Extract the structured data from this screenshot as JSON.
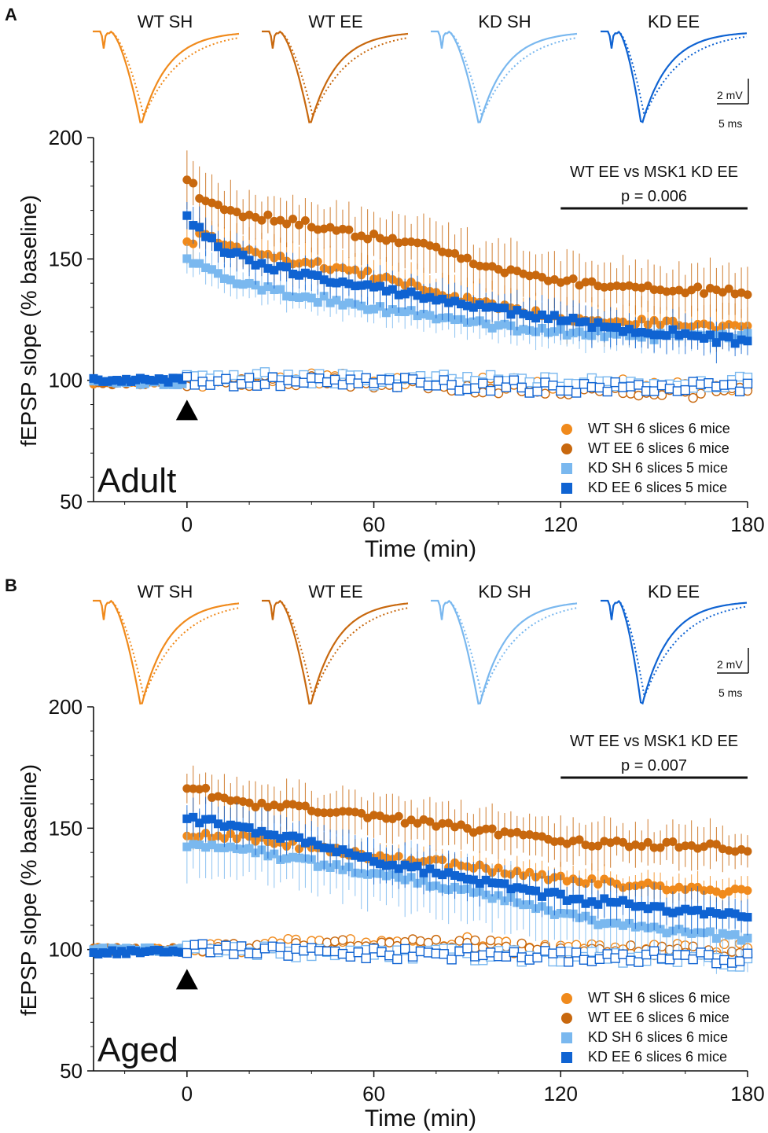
{
  "colors": {
    "wt_sh": "#f08a1c",
    "wt_ee": "#c8680e",
    "kd_sh": "#7ab8ef",
    "kd_ee": "#0f63d2",
    "axis": "#111111"
  },
  "scale_bar": {
    "voltage": "2 mV",
    "time": "5 ms"
  },
  "chart_data": [
    {
      "type": "scatter",
      "panel_label": "A",
      "stage_label": "Adult",
      "trace_labels": [
        "WT SH",
        "WT EE",
        "KD SH",
        "KD EE"
      ],
      "xlabel": "Time (min)",
      "ylabel": "fEPSP slope (% baseline)",
      "xlim": [
        -30,
        180
      ],
      "ylim": [
        50,
        200
      ],
      "xticks": [
        0,
        60,
        120,
        180
      ],
      "yticks": [
        50,
        100,
        150,
        200
      ],
      "stim_marker_time": 0,
      "comparison": {
        "title": "WT EE vs MSK1 KD EE",
        "p": "p = 0.006",
        "range": [
          120,
          180
        ]
      },
      "legend": {
        "position": "bottom-right",
        "entries": [
          "WT SH 6 slices 6 mice",
          "WT EE 6 slices 6 mice",
          "KD SH 6 slices 5 mice",
          "KD EE 6 slices 5 mice"
        ]
      },
      "series": [
        {
          "name": "WT SH 6 slices 6 mice",
          "key": "wt_sh",
          "marker": "circle",
          "baseline": 99,
          "points": [
            [
              0,
              156
            ],
            [
              5,
              160
            ],
            [
              10,
              157
            ],
            [
              20,
              153
            ],
            [
              30,
              150
            ],
            [
              40,
              148
            ],
            [
              50,
              146
            ],
            [
              60,
              143
            ],
            [
              70,
              140
            ],
            [
              80,
              136
            ],
            [
              90,
              133
            ],
            [
              100,
              130
            ],
            [
              110,
              128
            ],
            [
              120,
              126
            ],
            [
              130,
              125
            ],
            [
              140,
              124
            ],
            [
              150,
              124
            ],
            [
              160,
              123
            ],
            [
              170,
              122
            ],
            [
              180,
              122
            ]
          ],
          "control": [
            [
              0,
              99
            ],
            [
              30,
              101
            ],
            [
              60,
              100
            ],
            [
              90,
              99
            ],
            [
              120,
              98
            ],
            [
              150,
              98
            ],
            [
              180,
              98
            ]
          ]
        },
        {
          "name": "WT EE 6 slices 6 mice",
          "key": "wt_ee",
          "marker": "circle",
          "baseline": 99,
          "points": [
            [
              0,
              184
            ],
            [
              2,
              180
            ],
            [
              5,
              174
            ],
            [
              10,
              172
            ],
            [
              20,
              168
            ],
            [
              30,
              166
            ],
            [
              40,
              164
            ],
            [
              50,
              161
            ],
            [
              60,
              159
            ],
            [
              70,
              157
            ],
            [
              80,
              154
            ],
            [
              90,
              150
            ],
            [
              100,
              146
            ],
            [
              110,
              143
            ],
            [
              120,
              141
            ],
            [
              130,
              140
            ],
            [
              140,
              139
            ],
            [
              150,
              138
            ],
            [
              160,
              137
            ],
            [
              170,
              137
            ],
            [
              180,
              136
            ]
          ],
          "control": [
            [
              0,
              99
            ],
            [
              30,
              100
            ],
            [
              60,
              99
            ],
            [
              90,
              97
            ],
            [
              120,
              96
            ],
            [
              150,
              95
            ],
            [
              180,
              95
            ]
          ]
        },
        {
          "name": "KD SH 6 slices 5 mice",
          "key": "kd_sh",
          "marker": "square",
          "baseline": 99,
          "points": [
            [
              0,
              150
            ],
            [
              5,
              146
            ],
            [
              10,
              143
            ],
            [
              20,
              139
            ],
            [
              30,
              136
            ],
            [
              40,
              134
            ],
            [
              50,
              132
            ],
            [
              60,
              130
            ],
            [
              70,
              128
            ],
            [
              80,
              126
            ],
            [
              90,
              124
            ],
            [
              100,
              122
            ],
            [
              110,
              121
            ],
            [
              120,
              120
            ],
            [
              130,
              119
            ],
            [
              140,
              119
            ],
            [
              150,
              118
            ],
            [
              160,
              118
            ],
            [
              170,
              118
            ],
            [
              180,
              118
            ]
          ],
          "control": [
            [
              0,
              101
            ],
            [
              30,
              101
            ],
            [
              60,
              100
            ],
            [
              90,
              100
            ],
            [
              120,
              99
            ],
            [
              150,
              99
            ],
            [
              180,
              99
            ]
          ]
        },
        {
          "name": "KD EE 6 slices 5 mice",
          "key": "kd_ee",
          "marker": "square",
          "baseline": 100,
          "points": [
            [
              0,
              169
            ],
            [
              3,
              163
            ],
            [
              10,
              155
            ],
            [
              20,
              149
            ],
            [
              30,
              146
            ],
            [
              40,
              143
            ],
            [
              50,
              140
            ],
            [
              60,
              138
            ],
            [
              70,
              136
            ],
            [
              80,
              134
            ],
            [
              90,
              131
            ],
            [
              100,
              129
            ],
            [
              110,
              127
            ],
            [
              120,
              125
            ],
            [
              130,
              123
            ],
            [
              140,
              121
            ],
            [
              150,
              120
            ],
            [
              160,
              119
            ],
            [
              170,
              117
            ],
            [
              180,
              116
            ]
          ],
          "control": [
            [
              0,
              100
            ],
            [
              30,
              99
            ],
            [
              60,
              99
            ],
            [
              90,
              98
            ],
            [
              120,
              97
            ],
            [
              150,
              97
            ],
            [
              180,
              97
            ]
          ]
        }
      ]
    },
    {
      "type": "scatter",
      "panel_label": "B",
      "stage_label": "Aged",
      "trace_labels": [
        "WT SH",
        "WT EE",
        "KD SH",
        "KD EE"
      ],
      "xlabel": "Time (min)",
      "ylabel": "fEPSP slope (% baseline)",
      "xlim": [
        -30,
        180
      ],
      "ylim": [
        50,
        200
      ],
      "xticks": [
        0,
        60,
        120,
        180
      ],
      "yticks": [
        50,
        100,
        150,
        200
      ],
      "stim_marker_time": 0,
      "comparison": {
        "title": "WT EE vs MSK1 KD EE",
        "p": "p = 0.007",
        "range": [
          120,
          180
        ]
      },
      "legend": {
        "position": "bottom-right",
        "entries": [
          "WT SH 6 slices 6 mice",
          "WT EE 6 slices 6 mice",
          "KD SH 6 slices 6 mice",
          "KD EE 6 slices 6 mice"
        ]
      },
      "series": [
        {
          "name": "WT SH 6 slices 6 mice",
          "key": "wt_sh",
          "marker": "circle",
          "baseline": 100,
          "points": [
            [
              0,
              148
            ],
            [
              10,
              147
            ],
            [
              20,
              146
            ],
            [
              30,
              144
            ],
            [
              40,
              142
            ],
            [
              50,
              140
            ],
            [
              60,
              138
            ],
            [
              70,
              137
            ],
            [
              80,
              136
            ],
            [
              90,
              134
            ],
            [
              100,
              133
            ],
            [
              110,
              131
            ],
            [
              120,
              129
            ],
            [
              130,
              128
            ],
            [
              140,
              127
            ],
            [
              150,
              126
            ],
            [
              160,
              125
            ],
            [
              170,
              124
            ],
            [
              180,
              124
            ]
          ],
          "control": [
            [
              0,
              100
            ],
            [
              30,
              102
            ],
            [
              60,
              103
            ],
            [
              90,
              103
            ],
            [
              120,
              100
            ],
            [
              150,
              101
            ],
            [
              180,
              100
            ]
          ]
        },
        {
          "name": "WT EE 6 slices 6 mice",
          "key": "wt_ee",
          "marker": "circle",
          "baseline": 100,
          "points": [
            [
              0,
              167
            ],
            [
              3,
              168
            ],
            [
              10,
              162
            ],
            [
              20,
              160
            ],
            [
              30,
              159
            ],
            [
              40,
              158
            ],
            [
              50,
              157
            ],
            [
              60,
              155
            ],
            [
              70,
              153
            ],
            [
              80,
              152
            ],
            [
              90,
              150
            ],
            [
              100,
              148
            ],
            [
              110,
              147
            ],
            [
              120,
              145
            ],
            [
              130,
              144
            ],
            [
              140,
              144
            ],
            [
              150,
              143
            ],
            [
              160,
              143
            ],
            [
              170,
              142
            ],
            [
              180,
              140
            ]
          ],
          "control": [
            [
              0,
              100
            ],
            [
              30,
              101
            ],
            [
              60,
              102
            ],
            [
              90,
              102
            ],
            [
              120,
              99
            ],
            [
              150,
              100
            ],
            [
              180,
              98
            ]
          ]
        },
        {
          "name": "KD SH 6 slices 6 mice",
          "key": "kd_sh",
          "marker": "square",
          "baseline": 100,
          "points": [
            [
              0,
              142
            ],
            [
              10,
              143
            ],
            [
              20,
              141
            ],
            [
              30,
              138
            ],
            [
              40,
              136
            ],
            [
              50,
              134
            ],
            [
              60,
              131
            ],
            [
              70,
              129
            ],
            [
              80,
              127
            ],
            [
              90,
              124
            ],
            [
              100,
              122
            ],
            [
              110,
              118
            ],
            [
              120,
              114
            ],
            [
              130,
              112
            ],
            [
              140,
              110
            ],
            [
              150,
              108
            ],
            [
              160,
              107
            ],
            [
              170,
              106
            ],
            [
              180,
              104
            ]
          ],
          "control": [
            [
              0,
              100
            ],
            [
              30,
              99
            ],
            [
              60,
              99
            ],
            [
              90,
              98
            ],
            [
              120,
              97
            ],
            [
              150,
              96
            ],
            [
              180,
              95
            ]
          ]
        },
        {
          "name": "KD EE 6 slices 6 mice",
          "key": "kd_ee",
          "marker": "square",
          "baseline": 99,
          "points": [
            [
              0,
              154
            ],
            [
              10,
              152
            ],
            [
              20,
              149
            ],
            [
              30,
              147
            ],
            [
              40,
              144
            ],
            [
              50,
              141
            ],
            [
              60,
              137
            ],
            [
              70,
              134
            ],
            [
              80,
              132
            ],
            [
              90,
              129
            ],
            [
              100,
              127
            ],
            [
              110,
              124
            ],
            [
              120,
              122
            ],
            [
              130,
              120
            ],
            [
              140,
              119
            ],
            [
              150,
              117
            ],
            [
              160,
              116
            ],
            [
              170,
              115
            ],
            [
              180,
              114
            ]
          ],
          "control": [
            [
              0,
              100
            ],
            [
              30,
              99
            ],
            [
              60,
              98
            ],
            [
              90,
              98
            ],
            [
              120,
              97
            ],
            [
              150,
              97
            ],
            [
              180,
              96
            ]
          ]
        }
      ]
    }
  ]
}
